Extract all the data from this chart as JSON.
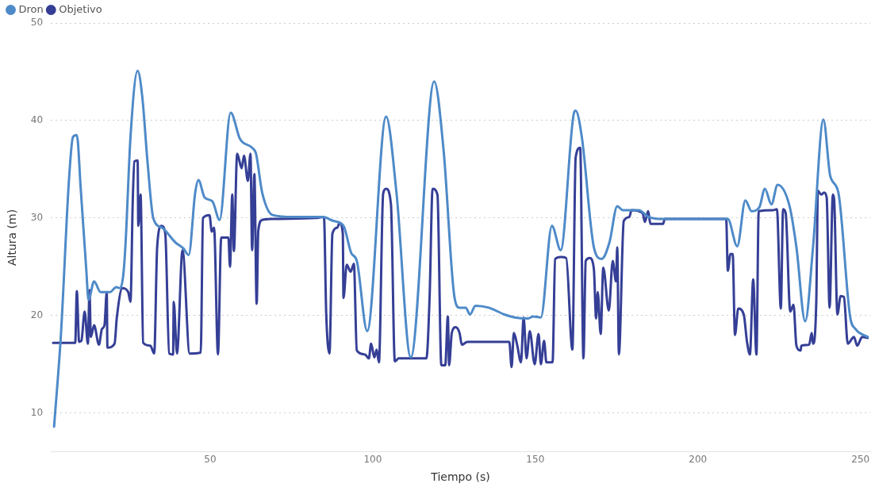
{
  "chart_data": {
    "type": "line",
    "xlabel": "Tiempo (s)",
    "ylabel": "Altura (m)",
    "xlim": [
      1,
      253
    ],
    "xticks": [
      50,
      100,
      150,
      200,
      250
    ],
    "ylim": [
      6,
      50
    ],
    "yticks": [
      10,
      20,
      30,
      40,
      50
    ],
    "grid": "y",
    "legend": "top left",
    "marker": "none",
    "line_style": "solid",
    "series": [
      {
        "name": "Dron",
        "color": "#4e8ac8",
        "x": [
          2,
          4.1,
          6.6,
          7.8,
          9,
          10.2,
          11.9,
          12.6,
          14.3,
          16.3,
          19.2,
          21.1,
          22.3,
          23.3,
          24,
          25.5,
          27.7,
          29.1,
          30.8,
          32.5,
          35.2,
          39.3,
          41.7,
          43.4,
          45.4,
          46.4,
          48.3,
          50.7,
          52.9,
          56.3,
          59.2,
          62.9,
          64.1,
          66,
          69.2,
          75.7,
          84.7,
          87.9,
          91,
          93.4,
          95.1,
          98.3,
          104.1,
          107.3,
          111.7,
          118.9,
          121.8,
          125,
          126.7,
          128.6,
          129.9,
          131.6,
          135.7,
          140.5,
          143.7,
          147.8,
          149.3,
          151.7,
          155.1,
          157.8,
          161.9,
          162.4,
          164.3,
          168,
          170.4,
          172.8,
          175.2,
          176.9,
          181.8,
          184.9,
          189.1,
          209.2,
          212.1,
          214.6,
          216.5,
          218.9,
          220.6,
          222.6,
          224.5,
          228.2,
          230.3,
          233,
          235.4,
          238.6,
          240.7,
          243.2,
          246.8,
          248.5,
          252.2
        ],
        "values": [
          8.6,
          18,
          34,
          38.3,
          38.5,
          33,
          24.7,
          21.6,
          23.5,
          22.4,
          22.4,
          22.9,
          22.8,
          24.2,
          27.5,
          38.3,
          45.1,
          42.5,
          35.5,
          30,
          29,
          27.5,
          26.9,
          26.2,
          32.6,
          33.9,
          32.1,
          31.7,
          29.8,
          40.8,
          38.1,
          37.2,
          36.6,
          32.6,
          30.3,
          30.1,
          30.1,
          29.7,
          29.2,
          26.4,
          25.6,
          18.4,
          40.4,
          32.6,
          15.7,
          44,
          36.9,
          22.2,
          20.8,
          20.8,
          20.1,
          21,
          20.8,
          20.1,
          19.8,
          19.7,
          19.9,
          19.8,
          29.2,
          26.7,
          40.8,
          41,
          38.3,
          27,
          25.8,
          27.5,
          31.2,
          30.8,
          30.8,
          30.1,
          29.9,
          29.9,
          27.1,
          31.8,
          30.7,
          31.1,
          33,
          31.4,
          33.4,
          31.2,
          27,
          19.4,
          27,
          40.1,
          34.3,
          32.6,
          19.9,
          18.6,
          17.8
        ]
      },
      {
        "name": "Objetivo",
        "color": "#353f96",
        "x": [
          1.7,
          8.5,
          9,
          9.7,
          10.4,
          11.4,
          12.4,
          12.9,
          13.3,
          14.3,
          15.8,
          16.7,
          17.5,
          18.2,
          18.4,
          20.6,
          21.3,
          23,
          24.8,
          25.5,
          26.2,
          26.7,
          27.7,
          27.9,
          28.6,
          29.4,
          31.6,
          32.8,
          33.7,
          35,
          36.2,
          37.4,
          38.6,
          38.8,
          39.8,
          41.5,
          43.7,
          47.1,
          47.8,
          49.8,
          50.5,
          51.2,
          52.4,
          53.4,
          55.6,
          56.1,
          56.8,
          57.3,
          58.3,
          59.7,
          60.4,
          61.6,
          62.4,
          62.9,
          63.6,
          64.3,
          64.8,
          66,
          69.2,
          82.5,
          85,
          85.7,
          86.7,
          87.6,
          89.1,
          89.8,
          90.8,
          91,
          92,
          93.2,
          94.2,
          95.1,
          97.6,
          98.8,
          99.5,
          100.5,
          101.2,
          101.9,
          103.2,
          104.1,
          105.6,
          106.8,
          108,
          116.5,
          117.5,
          118.4,
          119.9,
          121.1,
          122.3,
          123.1,
          123.5,
          124.3,
          125.5,
          126.7,
          127.4,
          129.1,
          142,
          142.7,
          143.4,
          144.4,
          145.6,
          146.4,
          147.3,
          148.3,
          149.8,
          151,
          151.7,
          152.7,
          153.4,
          155.3,
          156.1,
          157.8,
          159.5,
          161.4,
          162.4,
          163.8,
          164.8,
          165.5,
          166.7,
          168,
          168.7,
          169.2,
          170.1,
          170.9,
          172.6,
          173.8,
          174.8,
          175.2,
          175.7,
          177.2,
          178.9,
          179.6,
          183,
          183.7,
          184.7,
          185.4,
          189.3,
          189.8,
          208.7,
          209.2,
          210,
          210.7,
          211.4,
          212.4,
          214.1,
          215.1,
          216,
          217,
          218,
          218.7,
          223.1,
          224.3,
          225.5,
          226.2,
          227,
          228.4,
          229.4,
          230.3,
          231.6,
          231.8,
          234.2,
          235,
          235.4,
          236.4,
          236.9,
          237.9,
          238.8,
          239.6,
          240.5,
          241.5,
          241.9,
          242.9,
          243.9,
          244.9,
          246.1,
          248,
          249,
          250.5,
          252.2
        ],
        "values": [
          17.2,
          17.2,
          22.5,
          17.3,
          17.4,
          20.4,
          17.1,
          22.6,
          17.8,
          19,
          17,
          18.6,
          19,
          22.4,
          16.7,
          17.1,
          19.8,
          22.8,
          22.4,
          21.4,
          31.8,
          35.8,
          35.9,
          29.2,
          32.4,
          17.2,
          16.9,
          16.1,
          27,
          29.2,
          28.4,
          16.1,
          16,
          21.4,
          16.1,
          26.7,
          16.1,
          16.2,
          30,
          30.3,
          28.6,
          29,
          16,
          28,
          28,
          25,
          32.4,
          26.6,
          36.6,
          35.1,
          36.4,
          33.8,
          36.6,
          26.7,
          34.5,
          21.2,
          28.7,
          29.8,
          29.9,
          30,
          30.1,
          20.1,
          16.1,
          28.4,
          29,
          29.5,
          28.4,
          21.8,
          25.2,
          24.5,
          25.3,
          16.4,
          16,
          15.6,
          17.1,
          15.7,
          16.5,
          15.2,
          32.5,
          33,
          31.4,
          15.3,
          15.6,
          15.6,
          22,
          33,
          32.4,
          14.9,
          14.9,
          19.9,
          14.9,
          18.2,
          18.8,
          18.2,
          17,
          17.3,
          17.3,
          14.7,
          18.2,
          17,
          15.2,
          19.8,
          15.6,
          18.4,
          15,
          18.1,
          15,
          17.4,
          15.2,
          15.2,
          25.8,
          26,
          25.9,
          16.5,
          36.2,
          37.2,
          15.6,
          25.6,
          25.9,
          24.8,
          19.7,
          22.4,
          18.1,
          24.9,
          20.5,
          25.6,
          23.5,
          27,
          16,
          29.7,
          30.1,
          30.8,
          30.5,
          29.6,
          30.7,
          29.4,
          29.4,
          29.9,
          29.9,
          24.6,
          26.3,
          26.3,
          18,
          20.7,
          20.1,
          17.3,
          16,
          23.7,
          16,
          30.7,
          30.8,
          30.9,
          20.7,
          30.9,
          30.5,
          20.4,
          21.1,
          16.9,
          16.4,
          16.9,
          17,
          18.2,
          17.1,
          21.4,
          32.8,
          32.4,
          32.6,
          32.1,
          20.8,
          32.4,
          31.9,
          20.1,
          22,
          21.9,
          17.1,
          17.8,
          16.9,
          17.8,
          17.7
        ]
      }
    ]
  }
}
